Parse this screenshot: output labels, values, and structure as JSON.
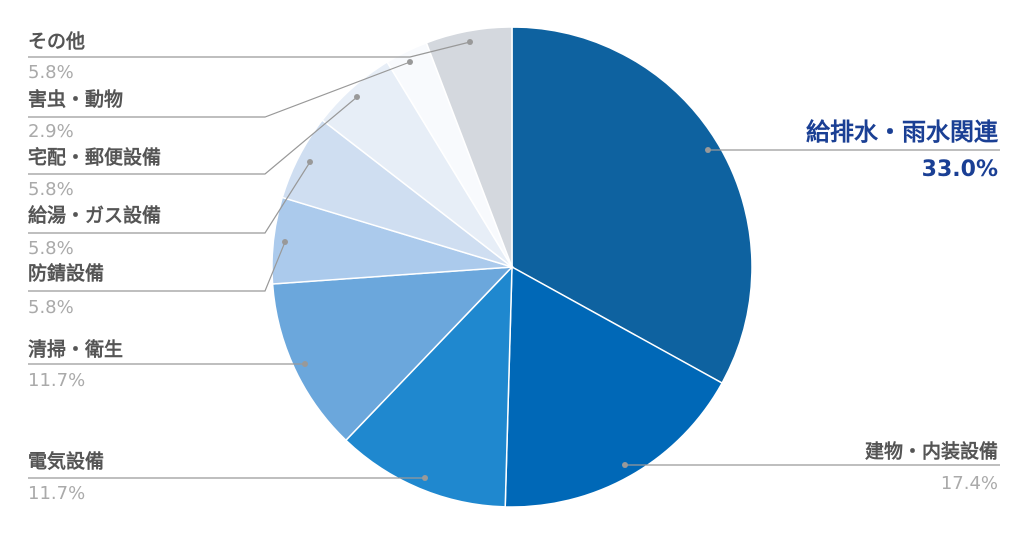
{
  "chart_data": {
    "type": "pie",
    "categories": [
      "給排水・雨水関連",
      "建物・内装設備",
      "電気設備",
      "清掃・衛生",
      "防錆設備",
      "給湯・ガス設備",
      "宅配・郵便設備",
      "害虫・動物",
      "その他"
    ],
    "values": [
      33.0,
      17.4,
      11.7,
      11.7,
      5.8,
      5.8,
      5.8,
      2.9,
      5.8
    ],
    "value_labels": [
      "33.0%",
      "17.4%",
      "11.7%",
      "11.7%",
      "5.8%",
      "5.8%",
      "5.8%",
      "2.9%",
      "5.8%"
    ],
    "colors": [
      "#0e62a0",
      "#0068b7",
      "#1f88cf",
      "#6ba7dc",
      "#abcaec",
      "#cfdef1",
      "#e7eef7",
      "#f8fafd",
      "#d4d8de"
    ]
  }
}
